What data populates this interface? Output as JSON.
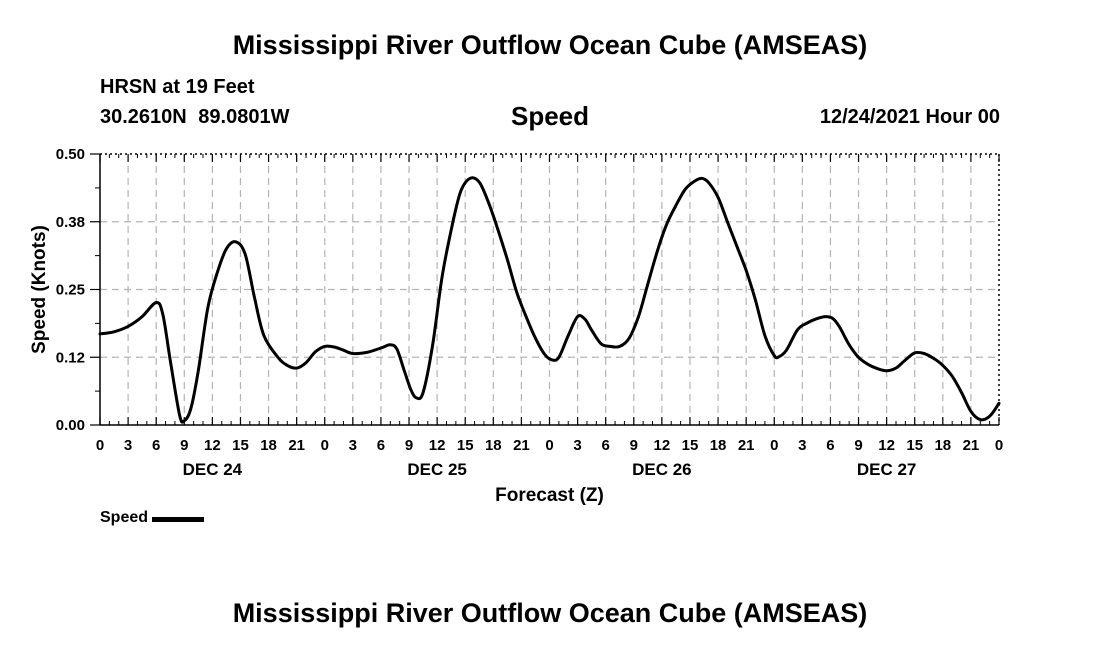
{
  "header": {
    "title": "Mississippi River Outflow Ocean Cube (AMSEAS)",
    "station": "HRSN at 19 Feet",
    "coordinates": "30.2610N 89.0801W",
    "parameter": "Speed",
    "forecast_date": "12/24/2021 Hour 00"
  },
  "footer": {
    "title": "Mississippi River Outflow Ocean Cube (AMSEAS)"
  },
  "legend": {
    "label": "Speed"
  },
  "chart_data": {
    "type": "line",
    "xlabel": "Forecast (Z)",
    "ylabel": "Speed (Knots)",
    "x_unit": "hours since 12/24/2021 00Z",
    "xlim": [
      0,
      96
    ],
    "ylim": [
      0,
      0.5
    ],
    "y_ticks": [
      0,
      0.125,
      0.25,
      0.375,
      0.5
    ],
    "y_tick_labels": [
      "0.00",
      "0.12",
      "0.25",
      "0.38",
      "0.50"
    ],
    "x_ticks": [
      0,
      3,
      6,
      9,
      12,
      15,
      18,
      21,
      24,
      27,
      30,
      33,
      36,
      39,
      42,
      45,
      48,
      51,
      54,
      57,
      60,
      63,
      66,
      69,
      72,
      75,
      78,
      81,
      84,
      87,
      90,
      93,
      96
    ],
    "x_tick_labels": [
      "0",
      "3",
      "6",
      "9",
      "12",
      "15",
      "18",
      "21",
      "0",
      "3",
      "6",
      "9",
      "12",
      "15",
      "18",
      "21",
      "0",
      "3",
      "6",
      "9",
      "12",
      "15",
      "18",
      "21",
      "0",
      "3",
      "6",
      "9",
      "12",
      "15",
      "18",
      "21",
      "0"
    ],
    "day_labels": [
      {
        "label": "DEC 24",
        "x": 12
      },
      {
        "label": "DEC 25",
        "x": 36
      },
      {
        "label": "DEC 26",
        "x": 60
      },
      {
        "label": "DEC 27",
        "x": 84
      }
    ],
    "grid": true,
    "legend_position": "bottom-left",
    "series": [
      {
        "name": "Speed",
        "color": "#000000",
        "points": [
          [
            0,
            0.168
          ],
          [
            1.5,
            0.172
          ],
          [
            3,
            0.182
          ],
          [
            4.5,
            0.2
          ],
          [
            6,
            0.226
          ],
          [
            6.7,
            0.205
          ],
          [
            7.5,
            0.12
          ],
          [
            8.5,
            0.018
          ],
          [
            9,
            0.008
          ],
          [
            9.7,
            0.03
          ],
          [
            10.5,
            0.1
          ],
          [
            11.5,
            0.215
          ],
          [
            12.5,
            0.28
          ],
          [
            13.5,
            0.325
          ],
          [
            14.5,
            0.338
          ],
          [
            15.5,
            0.315
          ],
          [
            16.5,
            0.235
          ],
          [
            17.5,
            0.165
          ],
          [
            19,
            0.125
          ],
          [
            20,
            0.11
          ],
          [
            21,
            0.105
          ],
          [
            22,
            0.115
          ],
          [
            23,
            0.135
          ],
          [
            24,
            0.145
          ],
          [
            25,
            0.144
          ],
          [
            26,
            0.138
          ],
          [
            27,
            0.132
          ],
          [
            28.5,
            0.134
          ],
          [
            30,
            0.142
          ],
          [
            31,
            0.148
          ],
          [
            31.7,
            0.14
          ],
          [
            32.5,
            0.1
          ],
          [
            33.2,
            0.065
          ],
          [
            33.8,
            0.05
          ],
          [
            34.5,
            0.06
          ],
          [
            35.5,
            0.145
          ],
          [
            36.5,
            0.27
          ],
          [
            37.5,
            0.36
          ],
          [
            38.5,
            0.43
          ],
          [
            39.5,
            0.455
          ],
          [
            40.5,
            0.448
          ],
          [
            41.5,
            0.41
          ],
          [
            42.5,
            0.36
          ],
          [
            43.5,
            0.305
          ],
          [
            44.5,
            0.245
          ],
          [
            45.5,
            0.2
          ],
          [
            46.5,
            0.16
          ],
          [
            47.5,
            0.13
          ],
          [
            48.3,
            0.12
          ],
          [
            49,
            0.125
          ],
          [
            50,
            0.165
          ],
          [
            51,
            0.2
          ],
          [
            51.8,
            0.195
          ],
          [
            52.5,
            0.175
          ],
          [
            53.5,
            0.15
          ],
          [
            54.5,
            0.145
          ],
          [
            55.5,
            0.145
          ],
          [
            56.5,
            0.16
          ],
          [
            57.5,
            0.2
          ],
          [
            58.5,
            0.26
          ],
          [
            59.5,
            0.32
          ],
          [
            60.5,
            0.37
          ],
          [
            61.5,
            0.405
          ],
          [
            62.5,
            0.435
          ],
          [
            63.5,
            0.45
          ],
          [
            64.3,
            0.455
          ],
          [
            65,
            0.447
          ],
          [
            66,
            0.42
          ],
          [
            67,
            0.375
          ],
          [
            68,
            0.33
          ],
          [
            69,
            0.285
          ],
          [
            70,
            0.23
          ],
          [
            71,
            0.165
          ],
          [
            72,
            0.128
          ],
          [
            72.5,
            0.126
          ],
          [
            73.3,
            0.138
          ],
          [
            74.5,
            0.176
          ],
          [
            75.5,
            0.188
          ],
          [
            76.5,
            0.196
          ],
          [
            77.5,
            0.2
          ],
          [
            78.3,
            0.196
          ],
          [
            79,
            0.18
          ],
          [
            80,
            0.148
          ],
          [
            81,
            0.125
          ],
          [
            82,
            0.112
          ],
          [
            83,
            0.104
          ],
          [
            84,
            0.1
          ],
          [
            85,
            0.105
          ],
          [
            86,
            0.12
          ],
          [
            87,
            0.133
          ],
          [
            88,
            0.132
          ],
          [
            89,
            0.123
          ],
          [
            90,
            0.11
          ],
          [
            91,
            0.09
          ],
          [
            92,
            0.06
          ],
          [
            93,
            0.025
          ],
          [
            94,
            0.01
          ],
          [
            95,
            0.016
          ],
          [
            96,
            0.04
          ]
        ]
      }
    ]
  }
}
